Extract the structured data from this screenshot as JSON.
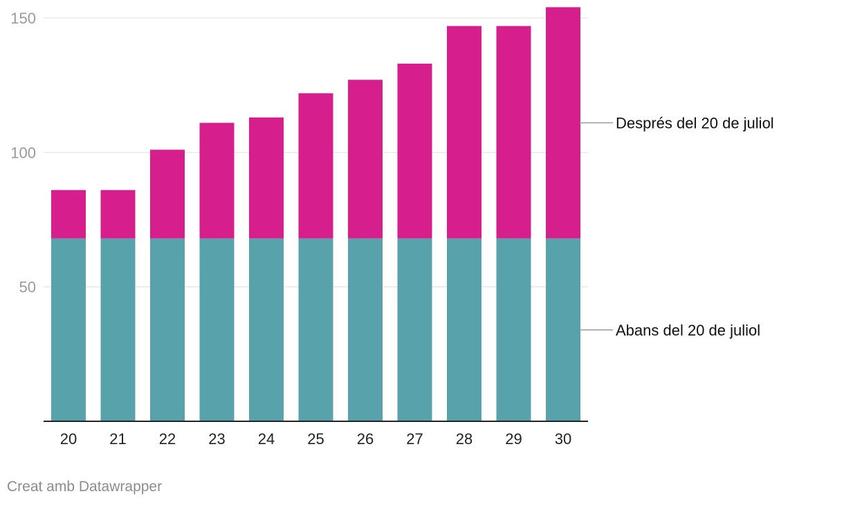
{
  "chart_data": {
    "type": "bar",
    "stacked": true,
    "categories": [
      "20",
      "21",
      "22",
      "23",
      "24",
      "25",
      "26",
      "27",
      "28",
      "29",
      "30"
    ],
    "series": [
      {
        "name": "Abans del 20 de juliol",
        "color": "#58a2ac",
        "values": [
          68,
          68,
          68,
          68,
          68,
          68,
          68,
          68,
          68,
          68,
          68
        ]
      },
      {
        "name": "Després del 20 de juliol",
        "color": "#d61e8c",
        "values": [
          18,
          18,
          33,
          43,
          45,
          54,
          59,
          65,
          79,
          79,
          86
        ]
      }
    ],
    "ylim": [
      0,
      150
    ],
    "yticks": [
      50,
      100,
      150
    ],
    "grid": true,
    "legend_placement": "right, labels beside the last bar"
  },
  "footer": {
    "credit": "Creat amb Datawrapper"
  },
  "colors": {
    "grid": "#e2e2e2",
    "axis": "#222222",
    "leader": "#999999"
  }
}
